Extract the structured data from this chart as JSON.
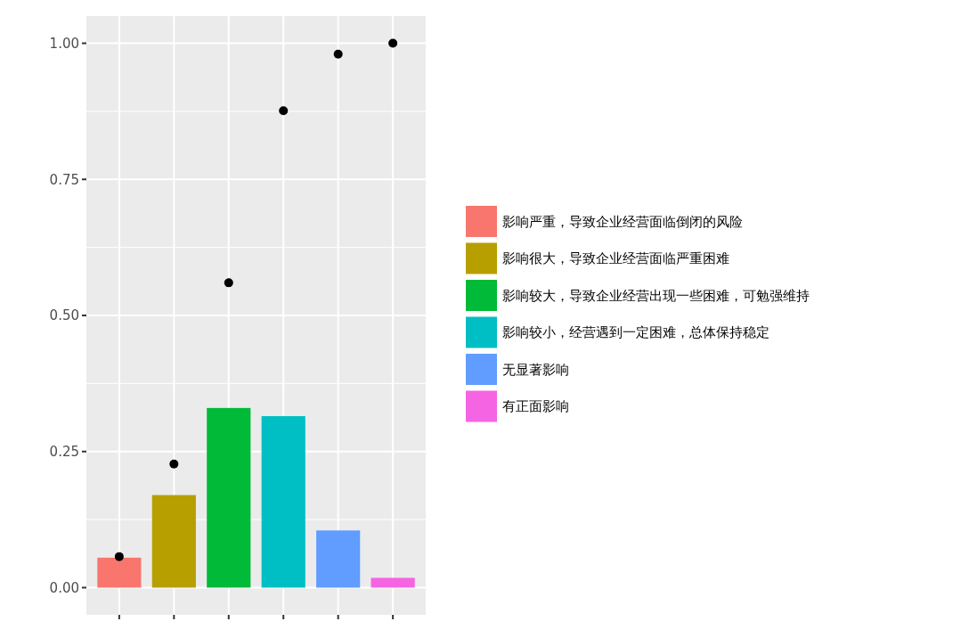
{
  "chart_data": {
    "type": "bar",
    "categories": [
      null,
      null,
      null,
      null,
      null,
      null
    ],
    "ylim": [
      -0.05,
      1.05
    ],
    "yticks": [
      {
        "value": 0,
        "label": "0.00"
      },
      {
        "value": 0.25,
        "label": "0.25"
      },
      {
        "value": 0.5,
        "label": "0.50"
      },
      {
        "value": 0.75,
        "label": "0.75"
      },
      {
        "value": 1,
        "label": "1.00"
      }
    ],
    "grid": true,
    "legend": "right",
    "series": [
      {
        "name": "影响严重，导致企业经营面临倒闭的风险",
        "color": "#f8766d",
        "values": [
          0.055,
          null,
          null,
          null,
          null,
          null
        ]
      },
      {
        "name": "影响很大，导致企业经营面临严重困难",
        "color": "#b79f00",
        "values": [
          null,
          0.17,
          null,
          null,
          null,
          null
        ]
      },
      {
        "name": "影响较大，导致企业经营出现一些困难，可勉强维持",
        "color": "#00ba38",
        "values": [
          null,
          null,
          0.33,
          null,
          null,
          null
        ]
      },
      {
        "name": "影响较小，经营遇到一定困难，总体保持稳定",
        "color": "#00bfc4",
        "values": [
          null,
          null,
          null,
          0.315,
          null,
          null
        ]
      },
      {
        "name": "无显著影响",
        "color": "#619cff",
        "values": [
          null,
          null,
          null,
          null,
          0.105,
          null
        ]
      },
      {
        "name": "有正面影响",
        "color": "#f564e3",
        "values": [
          null,
          null,
          null,
          null,
          null,
          0.018
        ]
      },
      {
        "type": "scatter",
        "color": "#000000",
        "marker": "circle",
        "values": [
          0.057,
          0.227,
          0.56,
          0.876,
          0.98,
          1
        ]
      }
    ]
  }
}
